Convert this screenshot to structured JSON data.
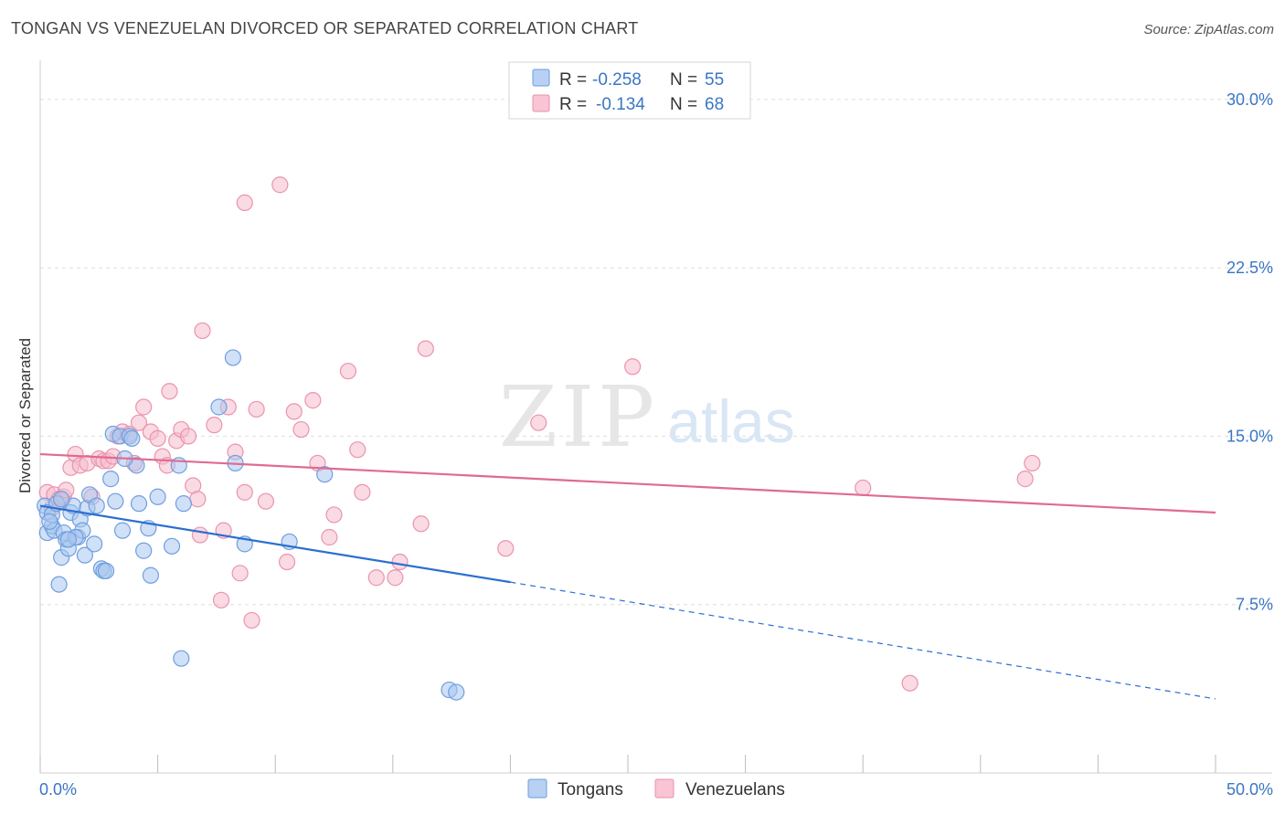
{
  "header": {
    "title": "TONGAN VS VENEZUELAN DIVORCED OR SEPARATED CORRELATION CHART",
    "source": "Source: ZipAtlas.com"
  },
  "watermark": {
    "zip": "ZIP",
    "atlas": "atlas"
  },
  "legend": {
    "r_label": "R =",
    "n_label": "N =",
    "rows": [
      {
        "r": "-0.258",
        "n": "55",
        "fill": "#b8d0f2",
        "stroke": "#6a9ee0"
      },
      {
        "r": "-0.134",
        "n": "68",
        "fill": "#f9c4d4",
        "stroke": "#ea8fab"
      }
    ]
  },
  "colors": {
    "tongan_fill": "#a9c7ef",
    "tongan_stroke": "#6f9fdf",
    "tongan_line": "#2b6fd0",
    "venez_fill": "#f6bccc",
    "venez_stroke": "#ea94af",
    "venez_line": "#e06a92",
    "tick_text": "#3a76c4",
    "grid": "#dddddd"
  },
  "chart_data": {
    "type": "scatter",
    "title": "TONGAN VS VENEZUELAN DIVORCED OR SEPARATED CORRELATION CHART",
    "xlabel": "",
    "ylabel": "Divorced or Separated",
    "xlim": [
      0,
      50
    ],
    "ylim": [
      0,
      31.5
    ],
    "x_tick_labels": [
      "0.0%",
      "50.0%"
    ],
    "y_ticks": [
      7.5,
      15.0,
      22.5,
      30.0
    ],
    "y_tick_labels": [
      "7.5%",
      "15.0%",
      "22.5%",
      "30.0%"
    ],
    "grid": "horizontal dashed",
    "legend_position": "top-center",
    "series": [
      {
        "name": "Tongans",
        "r": -0.258,
        "n": 55,
        "trend": {
          "x0": 0,
          "y0": 11.9,
          "x1": 20,
          "y1": 8.5,
          "dashed_to_x": 50,
          "dashed_y_end": 3.3
        },
        "points": [
          [
            0.2,
            11.9
          ],
          [
            0.3,
            11.6
          ],
          [
            0.3,
            10.7
          ],
          [
            0.5,
            11.0
          ],
          [
            0.5,
            11.5
          ],
          [
            0.6,
            10.8
          ],
          [
            0.7,
            12.0
          ],
          [
            0.8,
            8.4
          ],
          [
            0.9,
            9.6
          ],
          [
            1.0,
            10.7
          ],
          [
            1.1,
            10.4
          ],
          [
            1.2,
            10.0
          ],
          [
            1.3,
            11.6
          ],
          [
            1.4,
            11.9
          ],
          [
            1.6,
            10.5
          ],
          [
            1.7,
            11.3
          ],
          [
            1.8,
            10.8
          ],
          [
            1.9,
            9.7
          ],
          [
            2.0,
            11.8
          ],
          [
            2.1,
            12.4
          ],
          [
            2.3,
            10.2
          ],
          [
            2.4,
            11.9
          ],
          [
            2.6,
            9.1
          ],
          [
            2.7,
            9.0
          ],
          [
            3.0,
            13.1
          ],
          [
            3.1,
            15.1
          ],
          [
            3.2,
            12.1
          ],
          [
            3.4,
            15.0
          ],
          [
            3.5,
            10.8
          ],
          [
            3.8,
            15.0
          ],
          [
            3.9,
            14.9
          ],
          [
            4.1,
            13.7
          ],
          [
            4.2,
            12.0
          ],
          [
            4.4,
            9.9
          ],
          [
            4.6,
            10.9
          ],
          [
            4.7,
            8.8
          ],
          [
            5.0,
            12.3
          ],
          [
            5.6,
            10.1
          ],
          [
            5.9,
            13.7
          ],
          [
            6.0,
            5.1
          ],
          [
            6.1,
            12.0
          ],
          [
            7.6,
            16.3
          ],
          [
            8.2,
            18.5
          ],
          [
            8.3,
            13.8
          ],
          [
            8.7,
            10.2
          ],
          [
            10.6,
            10.3
          ],
          [
            12.1,
            13.3
          ],
          [
            17.4,
            3.7
          ],
          [
            17.7,
            3.6
          ],
          [
            1.5,
            10.5
          ],
          [
            0.9,
            12.2
          ],
          [
            2.8,
            9.0
          ],
          [
            1.2,
            10.4
          ],
          [
            3.6,
            14.0
          ],
          [
            0.4,
            11.2
          ]
        ]
      },
      {
        "name": "Venezuelans",
        "r": -0.134,
        "n": 68,
        "trend": {
          "x0": 0,
          "y0": 14.2,
          "x1": 50,
          "y1": 11.6
        },
        "points": [
          [
            0.3,
            12.5
          ],
          [
            0.5,
            11.8
          ],
          [
            0.6,
            12.4
          ],
          [
            0.8,
            12.2
          ],
          [
            0.9,
            12.1
          ],
          [
            1.0,
            12.3
          ],
          [
            1.1,
            12.6
          ],
          [
            1.3,
            13.6
          ],
          [
            1.5,
            14.2
          ],
          [
            1.7,
            13.7
          ],
          [
            2.0,
            13.8
          ],
          [
            2.2,
            12.3
          ],
          [
            2.5,
            14.0
          ],
          [
            2.7,
            13.9
          ],
          [
            2.9,
            13.9
          ],
          [
            3.1,
            14.1
          ],
          [
            3.3,
            15.0
          ],
          [
            3.5,
            15.2
          ],
          [
            4.0,
            13.8
          ],
          [
            4.2,
            15.6
          ],
          [
            4.4,
            16.3
          ],
          [
            4.7,
            15.2
          ],
          [
            5.0,
            14.9
          ],
          [
            5.2,
            14.1
          ],
          [
            5.4,
            13.7
          ],
          [
            5.5,
            17.0
          ],
          [
            5.8,
            14.8
          ],
          [
            6.0,
            15.3
          ],
          [
            6.3,
            15.0
          ],
          [
            6.5,
            12.8
          ],
          [
            6.7,
            12.2
          ],
          [
            6.8,
            10.6
          ],
          [
            6.9,
            19.7
          ],
          [
            7.4,
            15.5
          ],
          [
            7.7,
            7.7
          ],
          [
            7.8,
            10.8
          ],
          [
            8.0,
            16.3
          ],
          [
            8.3,
            14.3
          ],
          [
            8.5,
            8.9
          ],
          [
            8.7,
            12.5
          ],
          [
            9.0,
            6.8
          ],
          [
            9.2,
            16.2
          ],
          [
            9.6,
            12.1
          ],
          [
            10.2,
            26.2
          ],
          [
            10.5,
            9.4
          ],
          [
            10.8,
            16.1
          ],
          [
            11.1,
            15.3
          ],
          [
            11.6,
            16.6
          ],
          [
            11.8,
            13.8
          ],
          [
            12.3,
            10.5
          ],
          [
            12.5,
            11.5
          ],
          [
            13.1,
            17.9
          ],
          [
            13.5,
            14.4
          ],
          [
            13.7,
            12.5
          ],
          [
            14.3,
            8.7
          ],
          [
            15.1,
            8.7
          ],
          [
            15.3,
            9.4
          ],
          [
            16.2,
            11.1
          ],
          [
            16.4,
            18.9
          ],
          [
            19.8,
            10.0
          ],
          [
            21.2,
            15.6
          ],
          [
            25.2,
            18.1
          ],
          [
            35.0,
            12.7
          ],
          [
            37.0,
            4.0
          ],
          [
            41.9,
            13.1
          ],
          [
            42.2,
            13.8
          ],
          [
            8.7,
            25.4
          ],
          [
            3.8,
            15.1
          ]
        ]
      }
    ]
  },
  "bottom_legend": [
    {
      "label": "Tongans"
    },
    {
      "label": "Venezuelans"
    }
  ]
}
